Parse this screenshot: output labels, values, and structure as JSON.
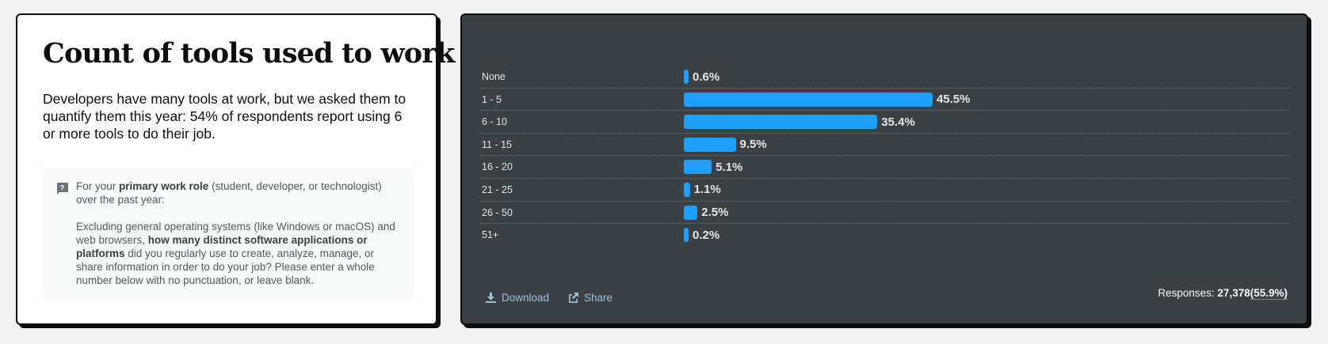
{
  "info_card": {
    "title": "Count of tools used to work",
    "intro": "Developers have many tools at work, but we asked them to quantify them this year: 54% of respondents report using 6 or more tools to do their job.",
    "question": {
      "icon": "question-bubble-icon",
      "p1_pre": "For your ",
      "p1_bold": "primary work role",
      "p1_post": " (student, developer, or technologist) over the past year:",
      "p2_pre": "Excluding general operating systems (like Windows or macOS) and web browsers, ",
      "p2_bold": "how many distinct software applications or platforms",
      "p2_post": " did you regularly use to create, analyze, manage, or share information in order to do your job? Please enter a whole number below with no punctuation, or leave blank."
    }
  },
  "chart_card": {
    "download_label": "Download",
    "share_label": "Share",
    "responses_label": "Responses: ",
    "responses_count": "27,378",
    "responses_pct": "(55.9%)",
    "bar_color": "#1f9ffc",
    "background_color": "#3b4045"
  },
  "chart_data": {
    "type": "bar",
    "orientation": "horizontal",
    "title": "Count of tools used to work",
    "categories": [
      "None",
      "1 - 5",
      "6 - 10",
      "11 - 15",
      "16 - 20",
      "21 - 25",
      "26 - 50",
      "51+"
    ],
    "values": [
      0.6,
      45.5,
      35.4,
      9.5,
      5.1,
      1.1,
      2.5,
      0.2
    ],
    "value_labels": [
      "0.6%",
      "45.5%",
      "35.4%",
      "9.5%",
      "5.1%",
      "1.1%",
      "2.5%",
      "0.2%"
    ],
    "xlabel": "",
    "ylabel": "",
    "xlim": [
      0,
      100
    ],
    "grid": "dotted row separators",
    "legend": "none",
    "responses": 27378,
    "response_rate_pct": 55.9
  }
}
